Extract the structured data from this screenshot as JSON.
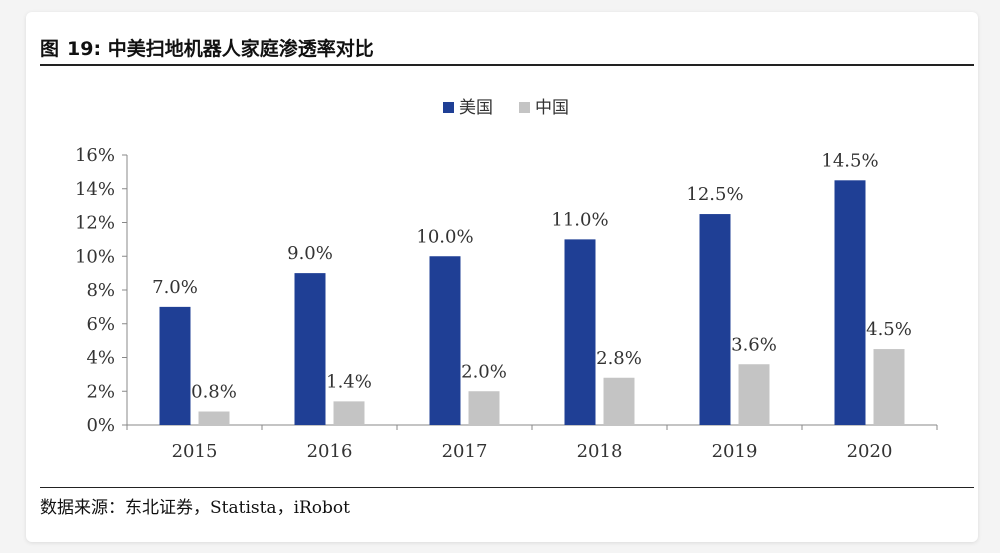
{
  "figure": {
    "label": "图",
    "number": "19:",
    "title": "中美扫地机器人家庭渗透率对比",
    "source": "数据来源：东北证券，Statista，iRobot"
  },
  "chart_data": {
    "type": "bar",
    "title": "中美扫地机器人家庭渗透率对比",
    "xlabel": "",
    "ylabel": "",
    "categories": [
      "2015",
      "2016",
      "2017",
      "2018",
      "2019",
      "2020"
    ],
    "series": [
      {
        "name": "美国",
        "values": [
          7.0,
          9.0,
          10.0,
          11.0,
          12.5,
          14.5
        ],
        "labels": [
          "7.0%",
          "9.0%",
          "10.0%",
          "11.0%",
          "12.5%",
          "14.5%"
        ],
        "color": "#1f3f95"
      },
      {
        "name": "中国",
        "values": [
          0.8,
          1.4,
          2.0,
          2.8,
          3.6,
          4.5
        ],
        "labels": [
          "0.8%",
          "1.4%",
          "2.0%",
          "2.8%",
          "3.6%",
          "4.5%"
        ],
        "color": "#c4c4c4"
      }
    ],
    "ylim": [
      0,
      16
    ],
    "yticks": [
      0,
      2,
      4,
      6,
      8,
      10,
      12,
      14,
      16
    ],
    "ytick_labels": [
      "0%",
      "2%",
      "4%",
      "6%",
      "8%",
      "10%",
      "12%",
      "14%",
      "16%"
    ],
    "grid": false,
    "legend_position": "top-center"
  }
}
